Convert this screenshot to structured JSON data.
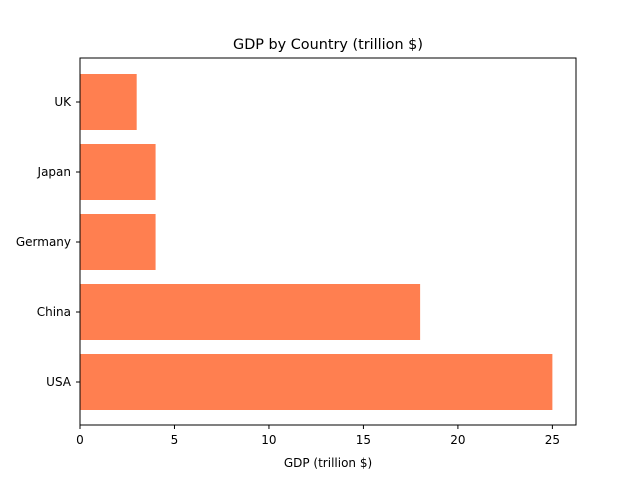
{
  "chart_data": {
    "type": "bar",
    "orientation": "horizontal",
    "title": "GDP by Country (trillion $)",
    "xlabel": "GDP (trillion $)",
    "ylabel": "",
    "categories": [
      "USA",
      "China",
      "Germany",
      "Japan",
      "UK"
    ],
    "values": [
      25,
      18,
      4,
      4,
      3
    ],
    "xlim": [
      0,
      26.25
    ],
    "xticks": [
      0,
      5,
      10,
      15,
      20,
      25
    ],
    "grid": false,
    "bar_color": "#FF7F50"
  }
}
